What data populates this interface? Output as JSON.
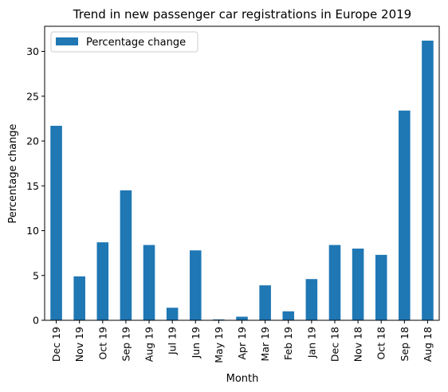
{
  "chart_data": {
    "type": "bar",
    "title": "Trend in new passenger car registrations in Europe 2019",
    "xlabel": "Month",
    "ylabel": "Percentage change",
    "categories": [
      "Dec 19",
      "Nov 19",
      "Oct 19",
      "Sep 19",
      "Aug 19",
      "Jul 19",
      "Jun 19",
      "May 19",
      "Apr 19",
      "Mar 19",
      "Feb 19",
      "Jan 19",
      "Dec 18",
      "Nov 18",
      "Oct 18",
      "Sep 18",
      "Aug 18"
    ],
    "series": [
      {
        "name": "Percentage change",
        "color": "#1f77b4",
        "values": [
          21.7,
          4.9,
          8.7,
          14.5,
          8.4,
          1.4,
          7.8,
          0.1,
          0.4,
          3.9,
          1.0,
          4.6,
          8.4,
          8.0,
          7.3,
          23.4,
          31.2
        ]
      }
    ],
    "ylim": [
      0,
      32.8
    ],
    "yticks": [
      0,
      5,
      10,
      15,
      20,
      25,
      30
    ],
    "legend_position": "top-left"
  }
}
